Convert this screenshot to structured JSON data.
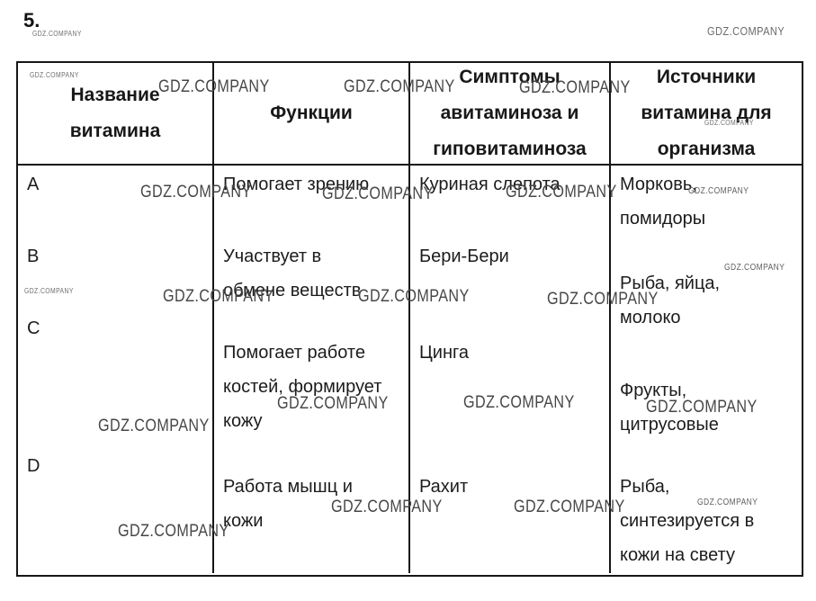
{
  "page": {
    "number": "5."
  },
  "watermark": {
    "text": "GDZ.COMPANY"
  },
  "table": {
    "header_lines": [
      [
        "Название",
        "витамина"
      ],
      [
        "Функции"
      ],
      [
        "Симптомы",
        "авитаминоза и",
        "гиповитаминоза"
      ],
      [
        "Источники",
        "витамина для",
        "организма"
      ]
    ],
    "rows": [
      {
        "vitamin": "A",
        "function_lines": [
          "Помогает зрению"
        ],
        "symptom_lines": [
          "Куриная слепота"
        ],
        "source_lines": [
          "Морковь,",
          "помидоры"
        ]
      },
      {
        "vitamin": "B",
        "function_lines": [
          "Участвует в",
          "обмене веществ"
        ],
        "symptom_lines": [
          "Бери-Бери"
        ],
        "source_lines": [
          "Рыба, яйца,",
          "молоко"
        ]
      },
      {
        "vitamin": "C",
        "function_lines": [
          "Помогает работе",
          "костей, формирует",
          "кожу"
        ],
        "symptom_lines": [
          "Цинга"
        ],
        "source_lines": [
          "Фрукты,",
          "цитрусовые"
        ]
      },
      {
        "vitamin": "D",
        "function_lines": [
          "Работа мышц и",
          "кожи"
        ],
        "symptom_lines": [
          "Рахит"
        ],
        "source_lines": [
          "Рыба,",
          "синтезируется в",
          "кожи на свету"
        ]
      }
    ]
  }
}
